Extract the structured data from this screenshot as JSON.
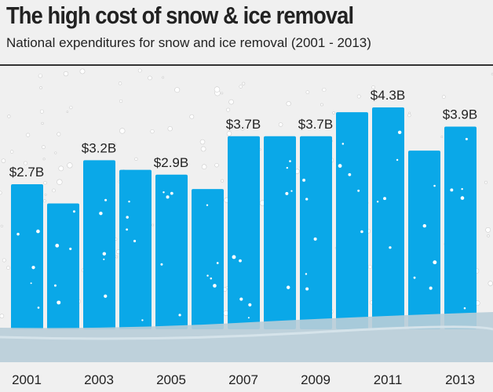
{
  "title": "The high cost of snow & ice removal",
  "subtitle": "National expenditures for snow and ice removal (2001 - 2013)",
  "chart_data": {
    "type": "bar",
    "title": "The high cost of snow & ice removal",
    "subtitle": "National expenditures for snow and ice removal (2001 - 2013)",
    "categories": [
      "2001",
      "2002",
      "2003",
      "2004",
      "2005",
      "2006",
      "2007",
      "2008",
      "2009",
      "2010",
      "2011",
      "2012",
      "2013"
    ],
    "values": [
      2.7,
      2.3,
      3.2,
      3.0,
      2.9,
      2.6,
      3.7,
      3.7,
      3.7,
      4.2,
      4.3,
      3.4,
      3.9
    ],
    "unit": "billion USD",
    "data_labels": {
      "2001": "$2.7B",
      "2003": "$3.2B",
      "2005": "$2.9B",
      "2007": "$3.7B",
      "2009": "$3.7B",
      "2011": "$4.3B",
      "2013": "$3.9B"
    },
    "tick_labels": [
      "2001",
      "2003",
      "2005",
      "2007",
      "2009",
      "2011",
      "2013"
    ],
    "bar_color": "#0aa8e8",
    "grid": false
  }
}
